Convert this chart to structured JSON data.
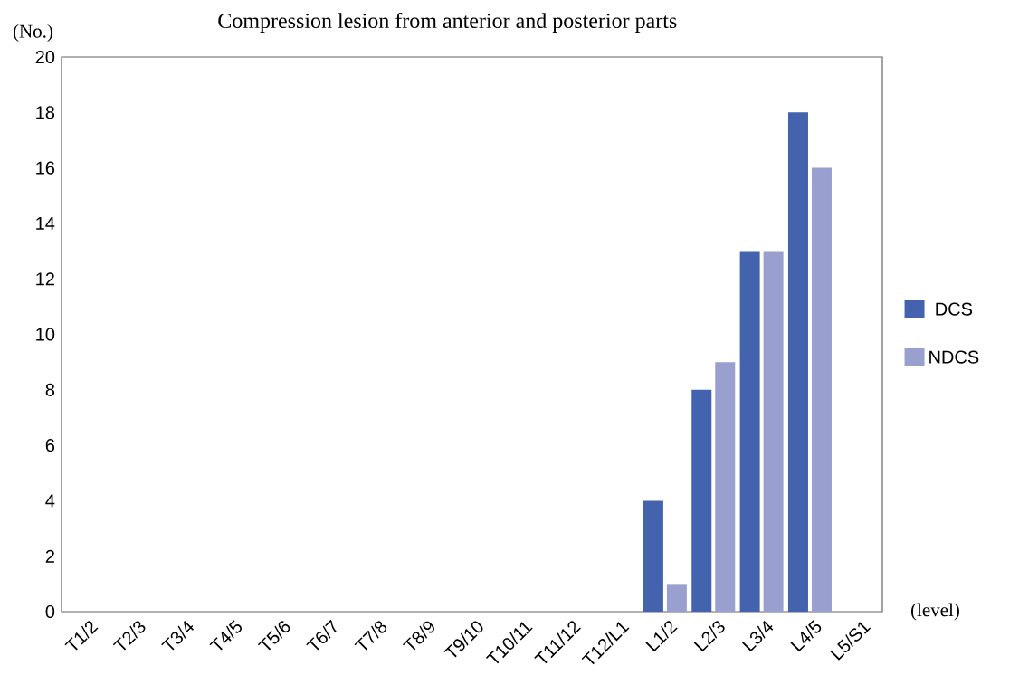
{
  "chart_data": {
    "type": "bar",
    "title": "Compression lesion from anterior and posterior parts",
    "xlabel": "(level)",
    "ylabel": "(No.)",
    "categories": [
      "T1/2",
      "T2/3",
      "T3/4",
      "T4/5",
      "T5/6",
      "T6/7",
      "T7/8",
      "T8/9",
      "T9/10",
      "T10/11",
      "T11/12",
      "T12/L1",
      "L1/2",
      "L2/3",
      "L3/4",
      "L4/5",
      "L5/S1"
    ],
    "series": [
      {
        "name": "DCS",
        "color": "#4363ae",
        "values": [
          0,
          0,
          0,
          0,
          0,
          0,
          0,
          0,
          0,
          0,
          0,
          0,
          4,
          8,
          13,
          18,
          0
        ]
      },
      {
        "name": "NDCS",
        "color": "#99a0d0",
        "values": [
          0,
          0,
          0,
          0,
          0,
          0,
          0,
          0,
          0,
          0,
          0,
          0,
          1,
          9,
          13,
          16,
          0
        ]
      }
    ],
    "ylim": [
      0,
      20
    ],
    "yticks": [
      0,
      2,
      4,
      6,
      8,
      10,
      12,
      14,
      16,
      18,
      20
    ],
    "grid": false,
    "legend": "right"
  }
}
